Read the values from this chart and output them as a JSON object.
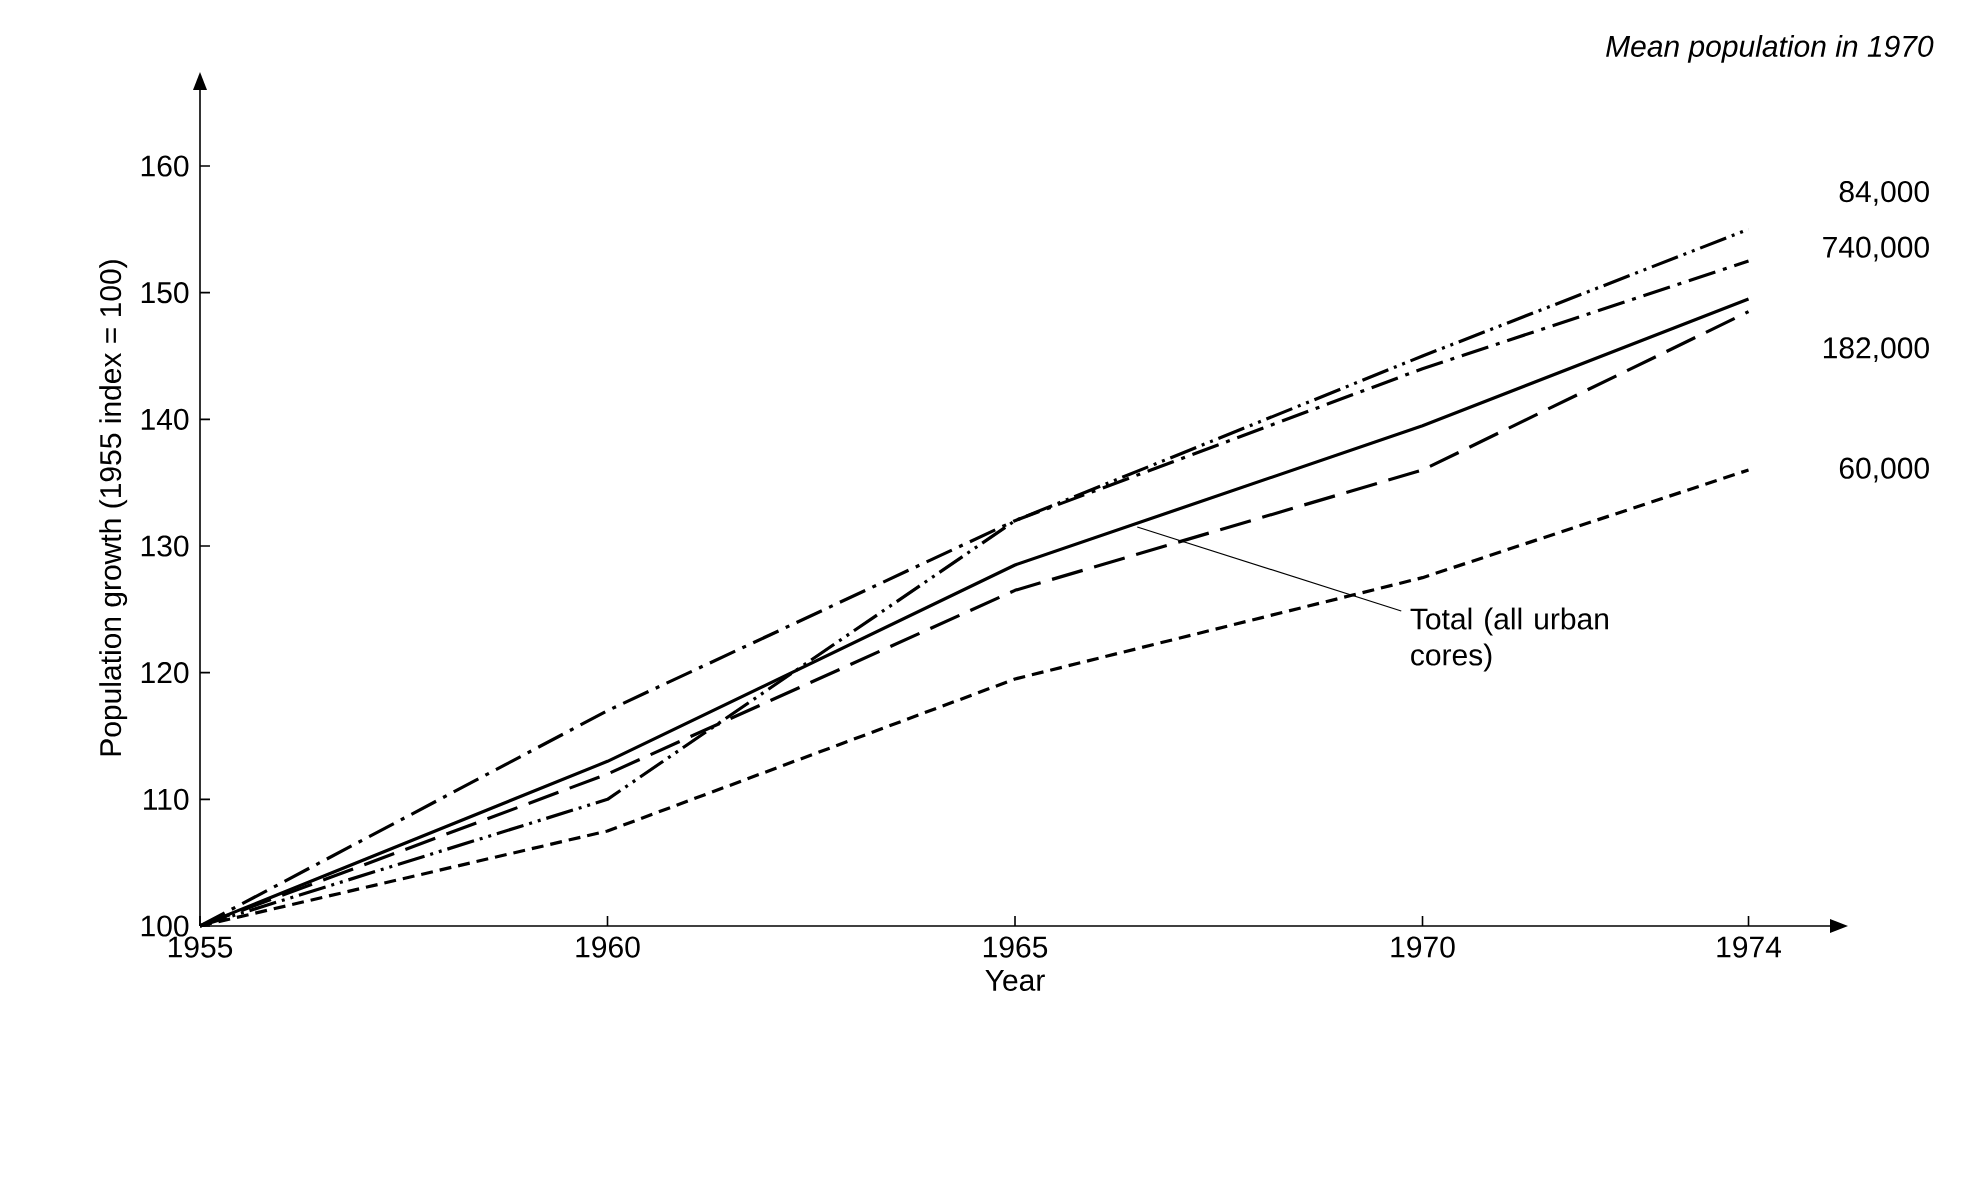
{
  "chart_data": {
    "type": "line",
    "xlabel": "Year",
    "ylabel": "Population growth (1955 index = 100)",
    "x": [
      1955,
      1960,
      1965,
      1970,
      1974
    ],
    "xlim": [
      1955,
      1975
    ],
    "ylim": [
      100,
      166
    ],
    "xticks": [
      1955,
      1960,
      1965,
      1970,
      1974
    ],
    "yticks": [
      100,
      110,
      120,
      130,
      140,
      150,
      160
    ],
    "legend_title": "Mean population in 1970",
    "series": [
      {
        "name": "84,000",
        "color": "#000000",
        "line_style": "dashdotdot",
        "values": [
          100,
          110,
          132,
          145,
          155
        ]
      },
      {
        "name": "740,000",
        "color": "#000000",
        "line_style": "dashdot",
        "values": [
          100,
          117,
          132,
          144,
          152.5
        ]
      },
      {
        "color": "#000000",
        "line_style": "solid",
        "values": [
          100,
          113,
          128.5,
          139.5,
          149.5
        ]
      },
      {
        "name": "182,000",
        "color": "#000000",
        "line_style": "longdash",
        "values": [
          100,
          112,
          126.5,
          136,
          148.5
        ]
      },
      {
        "name": "60,000",
        "color": "#000000",
        "line_style": "dashed",
        "values": [
          100,
          107.5,
          119.5,
          127.5,
          136
        ]
      }
    ],
    "annotations": [
      {
        "text": "Total (all urban cores)",
        "x": 1966.5,
        "y": 131.5
      }
    ],
    "grid": false,
    "legend": "right",
    "marker": "none"
  }
}
